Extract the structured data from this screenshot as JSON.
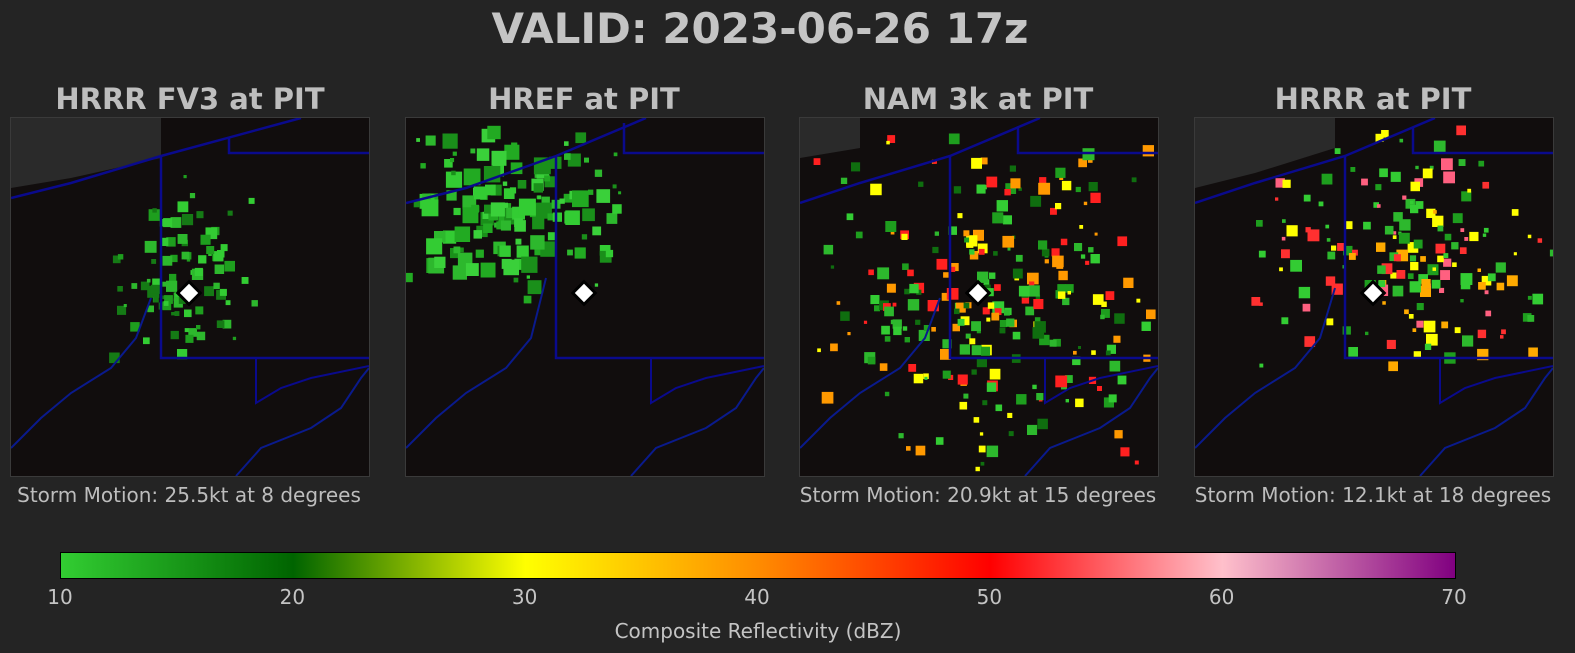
{
  "main_title": "VALID: 2023-06-26 17z",
  "panels": [
    {
      "title": "HRRR FV3 at PIT",
      "caption": "Storm Motion: 25.5kt at 8 degrees"
    },
    {
      "title": "HREF at PIT",
      "caption": ""
    },
    {
      "title": "NAM 3k at PIT",
      "caption": "Storm Motion: 20.9kt at 15 degrees"
    },
    {
      "title": "HRRR at PIT",
      "caption": "Storm Motion: 12.1kt at 18 degrees"
    }
  ],
  "colorbar": {
    "label": "Composite Reflectivity (dBZ)",
    "min": 10,
    "max": 70,
    "ticks": [
      "10",
      "20",
      "30",
      "40",
      "50",
      "60",
      "70"
    ],
    "colors": [
      "#32cd32",
      "#006400",
      "#ffff00",
      "#ff8c00",
      "#ff0000",
      "#ffc0cb",
      "#800080"
    ]
  },
  "station_marker": "white-diamond-icon",
  "map_colors": {
    "background": "#110d0d",
    "borders": "#0a0a8c",
    "lake": "#2a2a2a"
  }
}
